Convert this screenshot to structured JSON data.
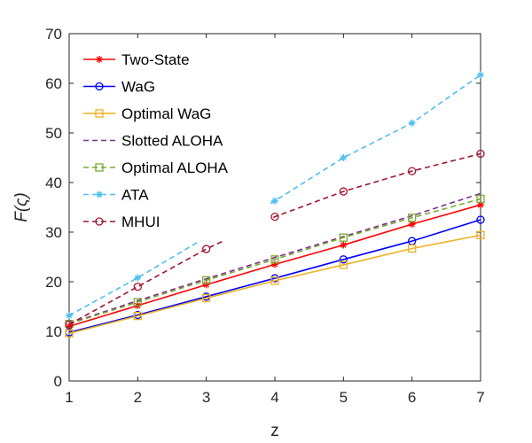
{
  "chart_data": {
    "type": "line",
    "title": "",
    "xlabel": "z",
    "ylabel": "F(ς)",
    "xlim": [
      1,
      7
    ],
    "ylim": [
      0,
      70
    ],
    "xticks": [
      1,
      2,
      3,
      4,
      5,
      6,
      7
    ],
    "yticks": [
      0,
      10,
      20,
      30,
      40,
      50,
      60,
      70
    ],
    "grid": false,
    "legend_position": "top-left",
    "x": [
      1,
      2,
      3,
      4,
      5,
      6,
      7
    ],
    "series": [
      {
        "name": "Two-State",
        "values": [
          11.0,
          15.2,
          19.4,
          23.5,
          27.4,
          31.6,
          35.5
        ],
        "color": "#ff0000",
        "dash": "solid",
        "marker": "star"
      },
      {
        "name": "WaG",
        "values": [
          9.8,
          13.3,
          17.0,
          20.7,
          24.5,
          28.2,
          32.5
        ],
        "color": "#0000ff",
        "dash": "solid",
        "marker": "circle"
      },
      {
        "name": "Optimal WaG",
        "values": [
          9.6,
          13.1,
          16.7,
          20.2,
          23.4,
          26.7,
          29.4
        ],
        "color": "#edb120",
        "dash": "solid",
        "marker": "square"
      },
      {
        "name": "Slotted ALOHA",
        "values": [
          11.6,
          16.2,
          20.6,
          24.9,
          29.1,
          33.3,
          37.8
        ],
        "color": "#7e2f8e",
        "dash": "dashed",
        "marker": "none"
      },
      {
        "name": "Optimal ALOHA",
        "values": [
          11.5,
          15.9,
          20.3,
          24.5,
          28.9,
          32.9,
          36.7
        ],
        "color": "#77ac30",
        "dash": "dashed",
        "marker": "square"
      },
      {
        "name": "ATA",
        "values": [
          13.2,
          20.8,
          29.0,
          36.3,
          45.0,
          52.0,
          61.7
        ],
        "color": "#4dbeee",
        "dash": "dashed",
        "marker": "star"
      },
      {
        "name": "MHUI",
        "values": [
          11.4,
          19.0,
          26.6,
          33.1,
          38.2,
          42.3,
          45.8
        ],
        "color": "#a2142f",
        "dash": "dashed",
        "marker": "circle"
      }
    ]
  }
}
